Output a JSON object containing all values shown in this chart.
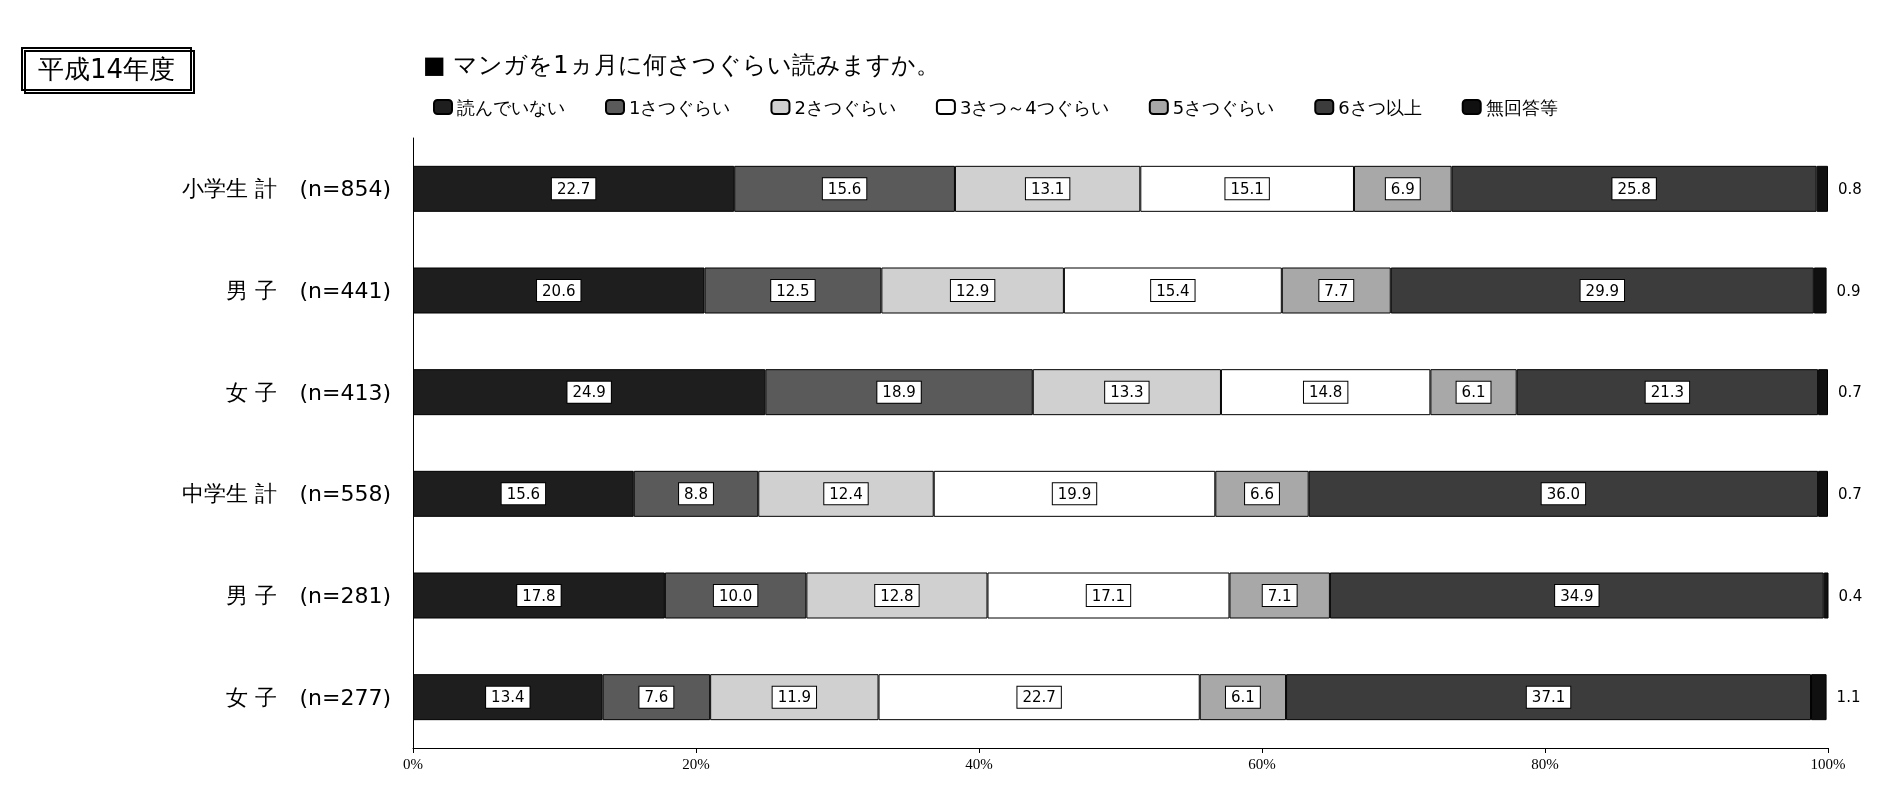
{
  "chart_data": {
    "type": "bar",
    "orientation": "horizontal",
    "stacked": true,
    "title": "平成14年度",
    "subtitle": "■ マンガを1ヵ月に何さつぐらい読みますか。",
    "categories": [
      "小学生 計　(n=854)",
      "男 子　(n=441)",
      "女 子　(n=413)",
      "中学生 計　(n=558)",
      "男 子　(n=281)",
      "女 子　(n=277)"
    ],
    "series": [
      {
        "name": "読んでいない",
        "color": "#1e1e1e",
        "values": [
          22.7,
          20.6,
          24.9,
          15.6,
          17.8,
          13.4
        ],
        "value_labels": [
          "22.7",
          "20.6",
          "24.9",
          "15.6",
          "17.8",
          "13.4"
        ]
      },
      {
        "name": "1さつぐらい",
        "color": "#5a5a5a",
        "values": [
          15.6,
          12.5,
          18.9,
          8.8,
          10.0,
          7.6
        ],
        "value_labels": [
          "15.6",
          "12.5",
          "18.9",
          "8.8",
          "10.0",
          "7.6"
        ]
      },
      {
        "name": "2さつぐらい",
        "color": "#d0d0d0",
        "values": [
          13.1,
          12.9,
          13.3,
          12.4,
          12.8,
          11.9
        ],
        "value_labels": [
          "13.1",
          "12.9",
          "13.3",
          "12.4",
          "12.8",
          "11.9"
        ]
      },
      {
        "name": "3さつ～4つぐらい",
        "color": "#ffffff",
        "values": [
          15.1,
          15.4,
          14.8,
          19.9,
          17.1,
          22.7
        ],
        "value_labels": [
          "15.1",
          "15.4",
          "14.8",
          "19.9",
          "17.1",
          "22.7"
        ]
      },
      {
        "name": "5さつぐらい",
        "color": "#a8a8a8",
        "values": [
          6.9,
          7.7,
          6.1,
          6.6,
          7.1,
          6.1
        ],
        "value_labels": [
          "6.9",
          "7.7",
          "6.1",
          "6.6",
          "7.1",
          "6.1"
        ]
      },
      {
        "name": "6さつ以上",
        "color": "#3c3c3c",
        "values": [
          25.8,
          29.9,
          21.3,
          36.0,
          34.9,
          37.1
        ],
        "value_labels": [
          "25.8",
          "29.9",
          "21.3",
          "36.0",
          "34.9",
          "37.1"
        ]
      },
      {
        "name": "無回答等",
        "color": "#101010",
        "values": [
          0.8,
          0.9,
          0.7,
          0.7,
          0.4,
          1.1
        ],
        "value_labels": [
          "0.8",
          "0.9",
          "0.7",
          "0.7",
          "0.4",
          "1.1"
        ]
      }
    ],
    "xlim": [
      0,
      100
    ],
    "xticks": [
      {
        "value": 0,
        "label": "0%"
      },
      {
        "value": 20,
        "label": "20%"
      },
      {
        "value": 40,
        "label": "40%"
      },
      {
        "value": 60,
        "label": "60%"
      },
      {
        "value": 80,
        "label": "80%"
      },
      {
        "value": 100,
        "label": "100%"
      }
    ],
    "legend": "top",
    "grid": false
  }
}
